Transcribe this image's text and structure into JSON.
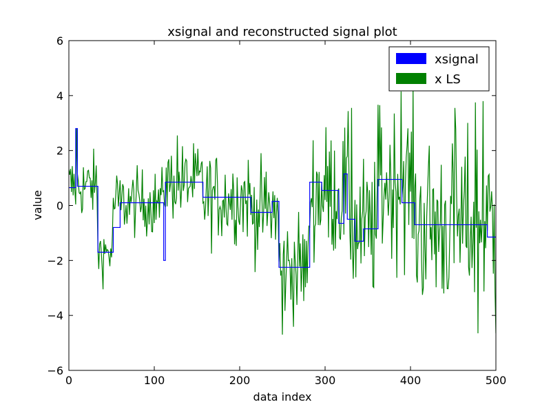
{
  "chart_data": {
    "type": "line",
    "title": "xsignal and reconstructed signal plot",
    "xlabel": "data index",
    "ylabel": "value",
    "xlim": [
      0,
      500
    ],
    "ylim": [
      -6,
      6
    ],
    "xticks": [
      0,
      100,
      200,
      300,
      400,
      500
    ],
    "yticks": [
      -6,
      -4,
      -2,
      0,
      2,
      4,
      6
    ],
    "xtick_labels": [
      "0",
      "100",
      "200",
      "300",
      "400",
      "500"
    ],
    "ytick_labels": [
      "−6",
      "−4",
      "−2",
      "0",
      "2",
      "4",
      "6"
    ],
    "legend_position": "top-right",
    "grid": false,
    "series": [
      {
        "name": "xsignal",
        "color": "#0000ff",
        "steps": [
          {
            "from": 0,
            "to": 8,
            "value": 0.65
          },
          {
            "from": 8,
            "to": 10,
            "value": 2.8
          },
          {
            "from": 10,
            "to": 34,
            "value": 0.7
          },
          {
            "from": 34,
            "to": 52,
            "value": -1.7
          },
          {
            "from": 52,
            "to": 60,
            "value": -0.8
          },
          {
            "from": 60,
            "to": 111,
            "value": 0.1
          },
          {
            "from": 111,
            "to": 113,
            "value": -2.0
          },
          {
            "from": 113,
            "to": 157,
            "value": 0.85
          },
          {
            "from": 157,
            "to": 213,
            "value": 0.3
          },
          {
            "from": 213,
            "to": 238,
            "value": -0.25
          },
          {
            "from": 238,
            "to": 246,
            "value": 0.15
          },
          {
            "from": 246,
            "to": 282,
            "value": -2.25
          },
          {
            "from": 282,
            "to": 296,
            "value": 0.85
          },
          {
            "from": 296,
            "to": 316,
            "value": 0.55
          },
          {
            "from": 316,
            "to": 322,
            "value": -0.65
          },
          {
            "from": 322,
            "to": 326,
            "value": 1.15
          },
          {
            "from": 326,
            "to": 335,
            "value": -0.5
          },
          {
            "from": 335,
            "to": 345,
            "value": -1.3
          },
          {
            "from": 345,
            "to": 362,
            "value": -0.85
          },
          {
            "from": 362,
            "to": 390,
            "value": 0.95
          },
          {
            "from": 390,
            "to": 405,
            "value": 0.1
          },
          {
            "from": 405,
            "to": 412,
            "value": -0.7
          },
          {
            "from": 412,
            "to": 490,
            "value": -0.7
          },
          {
            "from": 490,
            "to": 500,
            "value": -1.15
          }
        ]
      },
      {
        "name": "x LS",
        "color": "#008000",
        "noise_profile": [
          {
            "from": 0,
            "to": 34,
            "center": 0.7,
            "spread": 0.7
          },
          {
            "from": 34,
            "to": 52,
            "center": -1.7,
            "spread": 0.6
          },
          {
            "from": 52,
            "to": 111,
            "center": 0.1,
            "spread": 0.7
          },
          {
            "from": 111,
            "to": 157,
            "center": 0.85,
            "spread": 0.8
          },
          {
            "from": 157,
            "to": 213,
            "center": 0.3,
            "spread": 0.95
          },
          {
            "from": 213,
            "to": 246,
            "center": -0.2,
            "spread": 1.0
          },
          {
            "from": 246,
            "to": 282,
            "center": -2.25,
            "spread": 1.1
          },
          {
            "from": 282,
            "to": 330,
            "center": 0.5,
            "spread": 1.4
          },
          {
            "from": 330,
            "to": 362,
            "center": -0.9,
            "spread": 1.5
          },
          {
            "from": 362,
            "to": 405,
            "center": 0.8,
            "spread": 1.6
          },
          {
            "from": 405,
            "to": 500,
            "center": -0.7,
            "spread": 1.9
          }
        ],
        "peaks": [
          {
            "x": 9,
            "y": 2.8
          },
          {
            "x": 127,
            "y": 2.55
          },
          {
            "x": 250,
            "y": -4.7
          },
          {
            "x": 331,
            "y": 3.55
          },
          {
            "x": 364,
            "y": 3.65
          },
          {
            "x": 389,
            "y": 4.15
          },
          {
            "x": 452,
            "y": 3.55
          },
          {
            "x": 476,
            "y": 3.75
          },
          {
            "x": 485,
            "y": 3.8
          },
          {
            "x": 479,
            "y": -4.65
          },
          {
            "x": 500,
            "y": -4.65
          }
        ]
      }
    ]
  }
}
